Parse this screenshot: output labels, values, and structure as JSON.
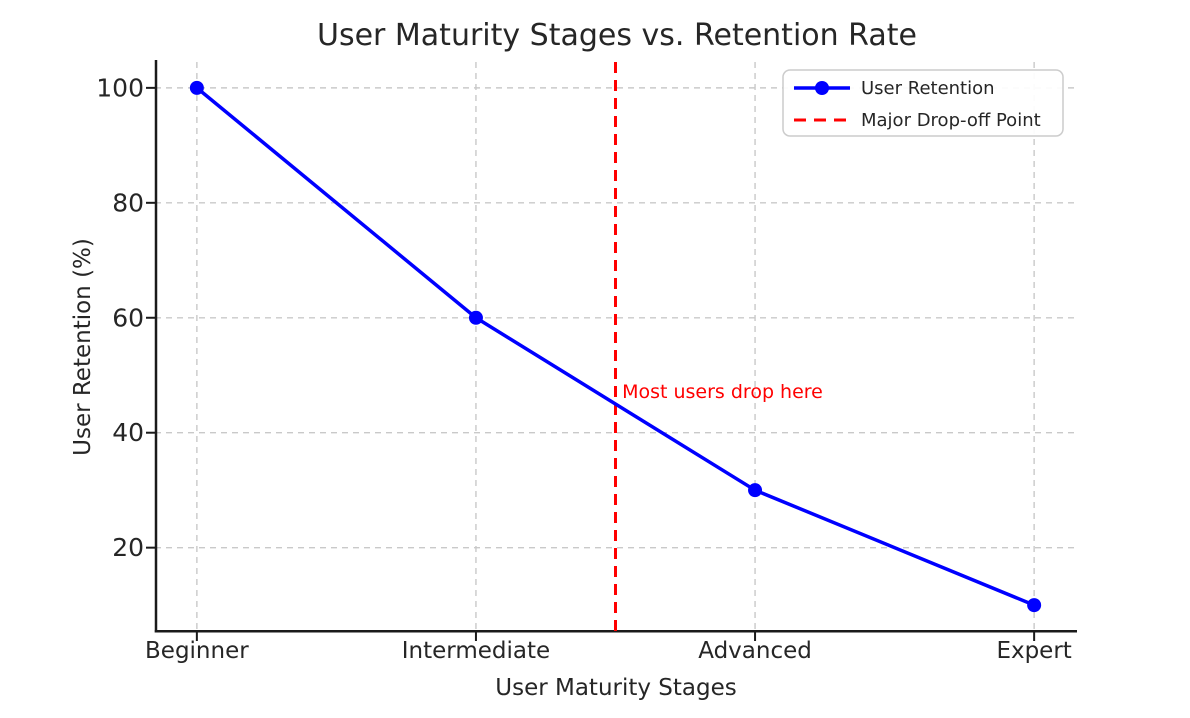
{
  "chart_data": {
    "type": "line",
    "title": "User Maturity Stages vs. Retention Rate",
    "xlabel": "User Maturity Stages",
    "ylabel": "User Retention (%)",
    "categories": [
      "Beginner",
      "Intermediate",
      "Advanced",
      "Expert"
    ],
    "series": [
      {
        "name": "User Retention",
        "values": [
          100,
          60,
          30,
          10
        ],
        "color": "#0000ff",
        "linestyle": "solid",
        "marker": "circle"
      }
    ],
    "vline": {
      "x": 1.5,
      "label": "Major Drop-off Point",
      "color": "#ff0000",
      "linestyle": "dashed"
    },
    "annotation": {
      "text": "Most users drop here",
      "x": 1.52,
      "y": 46,
      "color": "#ff0000"
    },
    "yticks": [
      20,
      40,
      60,
      80,
      100
    ],
    "ylim": [
      5.5,
      104.5
    ],
    "xlim": [
      -0.15,
      3.15
    ],
    "grid": {
      "show": true,
      "color": "#c9c9c9",
      "style": "dashed"
    },
    "legend": {
      "position": "upper right",
      "entries": [
        {
          "label": "User Retention",
          "color": "#0000ff",
          "style": "line-marker"
        },
        {
          "label": "Major Drop-off Point",
          "color": "#ff0000",
          "style": "dashed"
        }
      ]
    },
    "colors": {
      "text": "#262626",
      "spine": "#1a1a1a",
      "background": "#ffffff"
    }
  }
}
